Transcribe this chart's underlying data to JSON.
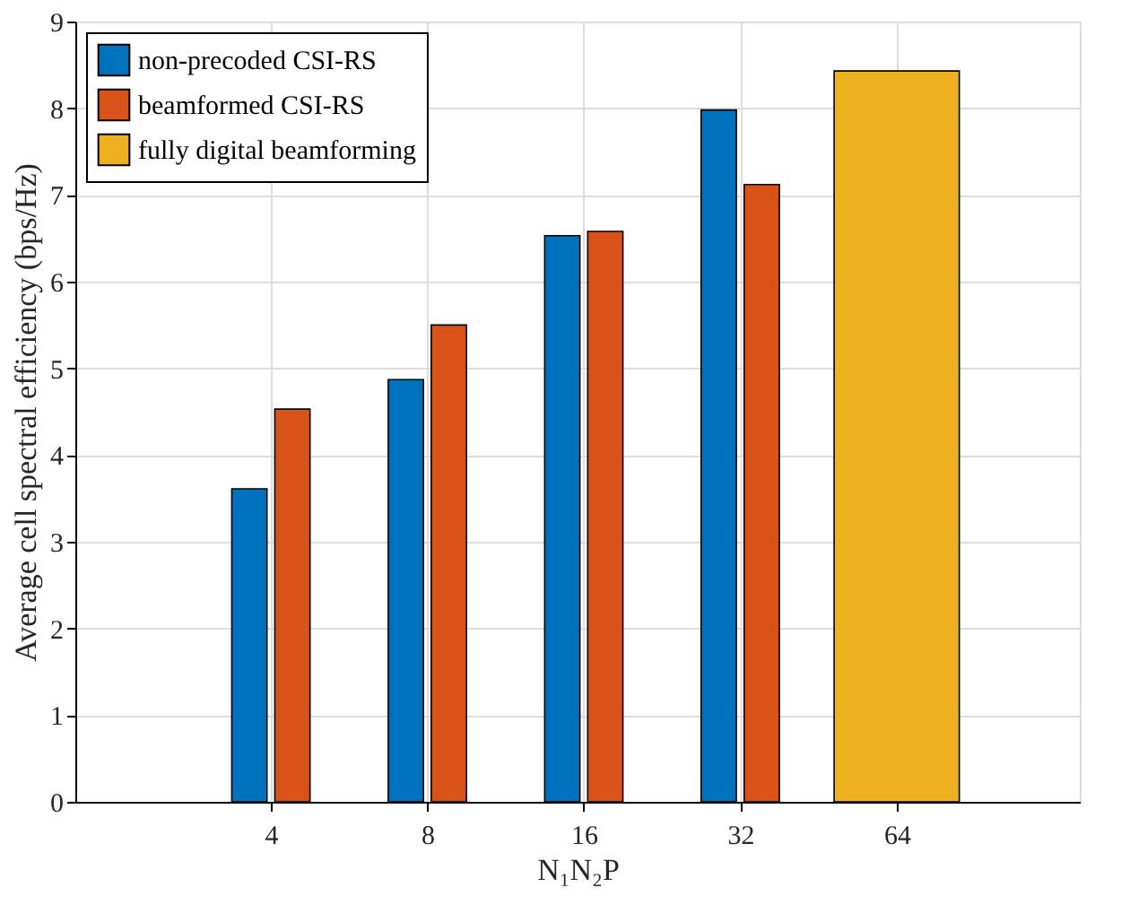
{
  "chart_data": {
    "type": "bar",
    "xlabel": "N₁N₂P",
    "ylabel": "Average cell spectral efficiency (bps/Hz)",
    "categories": [
      "4",
      "8",
      "16",
      "32",
      "64"
    ],
    "series": [
      {
        "name": "non-precoded CSI-RS",
        "color": "#0072bd",
        "values": [
          3.61,
          4.87,
          6.53,
          7.98,
          null
        ]
      },
      {
        "name": "beamformed CSI-RS",
        "color": "#d95319",
        "values": [
          4.53,
          5.5,
          6.58,
          7.12,
          null
        ]
      },
      {
        "name": "fully digital beamforming",
        "color": "#edb120",
        "values": [
          null,
          null,
          null,
          null,
          8.43
        ]
      }
    ],
    "ylim": [
      0,
      9
    ],
    "yticks": [
      0,
      1,
      2,
      3,
      4,
      5,
      6,
      7,
      8,
      9
    ],
    "grid": true,
    "legend": "top left"
  }
}
